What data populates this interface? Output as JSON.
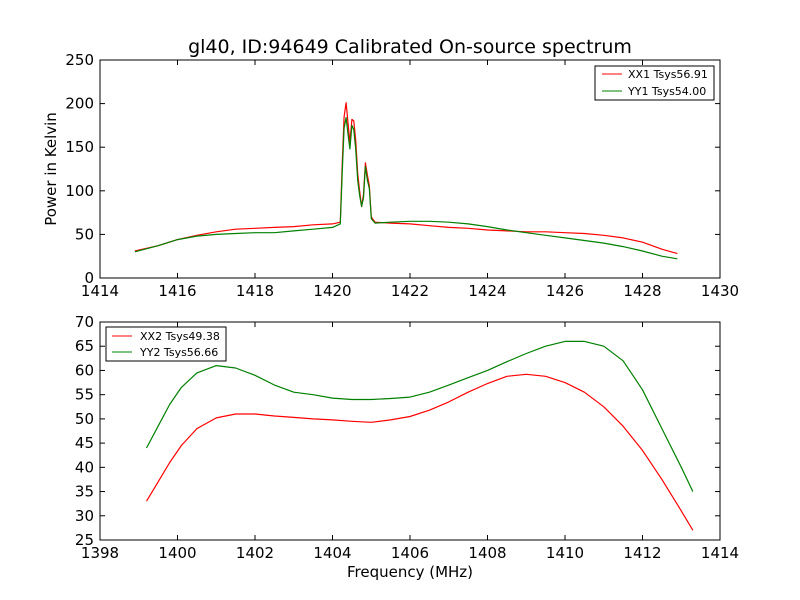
{
  "chart_data": [
    {
      "type": "line",
      "title": "gl40, ID:94649 Calibrated On-source spectrum",
      "xlabel": "",
      "ylabel": "Power in Kelvin",
      "xlim": [
        1414,
        1430
      ],
      "ylim": [
        0,
        250
      ],
      "xticks": [
        "1414",
        "1416",
        "1418",
        "1420",
        "1422",
        "1424",
        "1426",
        "1428",
        "1430"
      ],
      "yticks": [
        "0",
        "50",
        "100",
        "150",
        "200",
        "250"
      ],
      "grid": false,
      "legend_position": "top-right",
      "series": [
        {
          "name": "XX1 Tsys56.91",
          "color": "#ff0000",
          "x": [
            1414.9,
            1415.5,
            1416.0,
            1416.5,
            1417.0,
            1417.5,
            1418.0,
            1418.5,
            1419.0,
            1419.5,
            1420.0,
            1420.2,
            1420.25,
            1420.3,
            1420.35,
            1420.4,
            1420.45,
            1420.5,
            1420.55,
            1420.6,
            1420.65,
            1420.7,
            1420.75,
            1420.8,
            1420.85,
            1420.9,
            1420.95,
            1421.0,
            1421.1,
            1421.5,
            1422.0,
            1422.5,
            1423.0,
            1423.5,
            1424.0,
            1424.5,
            1425.0,
            1425.5,
            1426.0,
            1426.5,
            1427.0,
            1427.5,
            1428.0,
            1428.5,
            1428.9
          ],
          "values": [
            31,
            37,
            44,
            49,
            53,
            56,
            57,
            58,
            59,
            61,
            62,
            64,
            130,
            185,
            201,
            178,
            155,
            182,
            180,
            158,
            120,
            100,
            82,
            96,
            132,
            118,
            106,
            70,
            64,
            63,
            62,
            60,
            58,
            57,
            55,
            54,
            53,
            53,
            52,
            51,
            49,
            46,
            41,
            33,
            28
          ]
        },
        {
          "name": "YY1 Tsys54.00",
          "color": "#008000",
          "x": [
            1414.9,
            1415.5,
            1416.0,
            1416.5,
            1417.0,
            1417.5,
            1418.0,
            1418.5,
            1419.0,
            1419.5,
            1420.0,
            1420.2,
            1420.25,
            1420.3,
            1420.35,
            1420.4,
            1420.45,
            1420.5,
            1420.55,
            1420.6,
            1420.65,
            1420.7,
            1420.75,
            1420.8,
            1420.85,
            1420.9,
            1420.95,
            1421.0,
            1421.1,
            1421.5,
            1422.0,
            1422.5,
            1423.0,
            1423.5,
            1424.0,
            1424.5,
            1425.0,
            1425.5,
            1426.0,
            1426.5,
            1427.0,
            1427.5,
            1428.0,
            1428.5,
            1428.9
          ],
          "values": [
            30,
            37,
            44,
            48,
            50,
            51,
            52,
            52,
            54,
            56,
            58,
            62,
            120,
            172,
            184,
            165,
            148,
            175,
            170,
            148,
            112,
            95,
            82,
            92,
            128,
            112,
            103,
            68,
            63,
            64,
            65,
            65,
            64,
            62,
            59,
            55,
            52,
            49,
            46,
            43,
            40,
            36,
            31,
            25,
            22
          ]
        }
      ]
    },
    {
      "type": "line",
      "title": "",
      "xlabel": "Frequency (MHz)",
      "ylabel": "",
      "xlim": [
        1398,
        1414
      ],
      "ylim": [
        25,
        70
      ],
      "xticks": [
        "1398",
        "1400",
        "1402",
        "1404",
        "1406",
        "1408",
        "1410",
        "1412",
        "1414"
      ],
      "yticks": [
        "25",
        "30",
        "35",
        "40",
        "45",
        "50",
        "55",
        "60",
        "65",
        "70"
      ],
      "grid": false,
      "legend_position": "top-left",
      "series": [
        {
          "name": "XX2 Tsys49.38",
          "color": "#ff0000",
          "x": [
            1399.2,
            1399.5,
            1399.8,
            1400.1,
            1400.5,
            1401.0,
            1401.5,
            1402.0,
            1402.5,
            1403.0,
            1403.5,
            1404.0,
            1404.5,
            1405.0,
            1405.5,
            1406.0,
            1406.5,
            1407.0,
            1407.5,
            1408.0,
            1408.5,
            1409.0,
            1409.5,
            1410.0,
            1410.5,
            1411.0,
            1411.5,
            1412.0,
            1412.5,
            1413.0,
            1413.3
          ],
          "values": [
            33,
            37,
            41,
            44.5,
            48,
            50.2,
            51,
            51,
            50.6,
            50.3,
            50,
            49.8,
            49.5,
            49.3,
            49.8,
            50.5,
            51.8,
            53.5,
            55.5,
            57.3,
            58.8,
            59.2,
            58.8,
            57.5,
            55.5,
            52.5,
            48.5,
            43.5,
            37.5,
            31,
            27
          ]
        },
        {
          "name": "YY2 Tsys56.66",
          "color": "#008000",
          "x": [
            1399.2,
            1399.5,
            1399.8,
            1400.1,
            1400.5,
            1401.0,
            1401.5,
            1402.0,
            1402.5,
            1403.0,
            1403.5,
            1404.0,
            1404.5,
            1405.0,
            1405.5,
            1406.0,
            1406.5,
            1407.0,
            1407.5,
            1408.0,
            1408.5,
            1409.0,
            1409.5,
            1410.0,
            1410.5,
            1411.0,
            1411.5,
            1412.0,
            1412.5,
            1413.0,
            1413.3
          ],
          "values": [
            44,
            48.5,
            53,
            56.5,
            59.5,
            61,
            60.5,
            59,
            57,
            55.5,
            55,
            54.3,
            54,
            54,
            54.2,
            54.5,
            55.5,
            57,
            58.5,
            60,
            61.8,
            63.5,
            65,
            66,
            66,
            65,
            62,
            56,
            48,
            40,
            35
          ]
        }
      ]
    }
  ]
}
